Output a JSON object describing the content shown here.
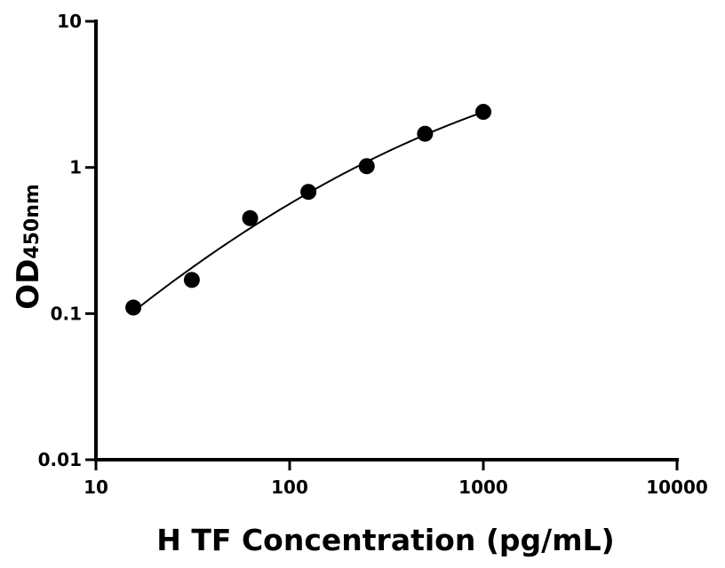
{
  "chart_data": {
    "type": "scatter",
    "title": "",
    "xlabel": "H TF Concentration (pg/mL)",
    "ylabel": "OD",
    "ylabel_subscript": "450nm",
    "xscale": "log",
    "yscale": "log",
    "xlim": [
      10,
      10000
    ],
    "ylim": [
      0.01,
      10
    ],
    "xticks": [
      {
        "value": 10,
        "label": "10"
      },
      {
        "value": 100,
        "label": "100"
      },
      {
        "value": 1000,
        "label": "1000"
      },
      {
        "value": 10000,
        "label": "10000"
      }
    ],
    "yticks": [
      {
        "value": 0.01,
        "label": "0.01"
      },
      {
        "value": 0.1,
        "label": "0.1"
      },
      {
        "value": 1,
        "label": "1"
      },
      {
        "value": 10,
        "label": "10"
      }
    ],
    "grid": false,
    "legend": "none",
    "series": [
      {
        "x": [
          15.6,
          31.25,
          62.5,
          125,
          250,
          500,
          1000
        ],
        "y": [
          0.11,
          0.17,
          0.45,
          0.68,
          1.02,
          1.7,
          2.4
        ],
        "marker_color": "#000000",
        "fit_curve": true
      }
    ]
  }
}
